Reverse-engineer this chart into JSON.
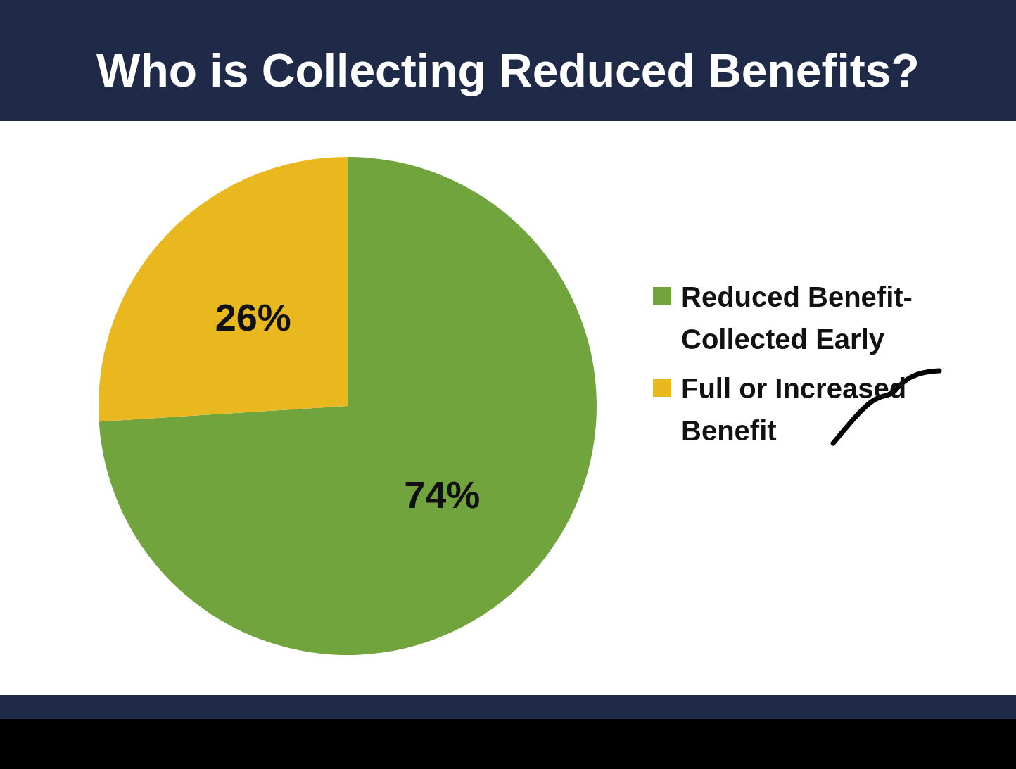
{
  "chart_data": {
    "type": "pie",
    "title": "Who is Collecting Reduced Benefits?",
    "categories": [
      "Reduced Benefit-Collected Early",
      "Full or Increased Benefit"
    ],
    "values": [
      74,
      26
    ],
    "colors": [
      "#72a43e",
      "#e8b81e"
    ],
    "value_labels": [
      "74%",
      "26%"
    ],
    "legend": "right"
  }
}
